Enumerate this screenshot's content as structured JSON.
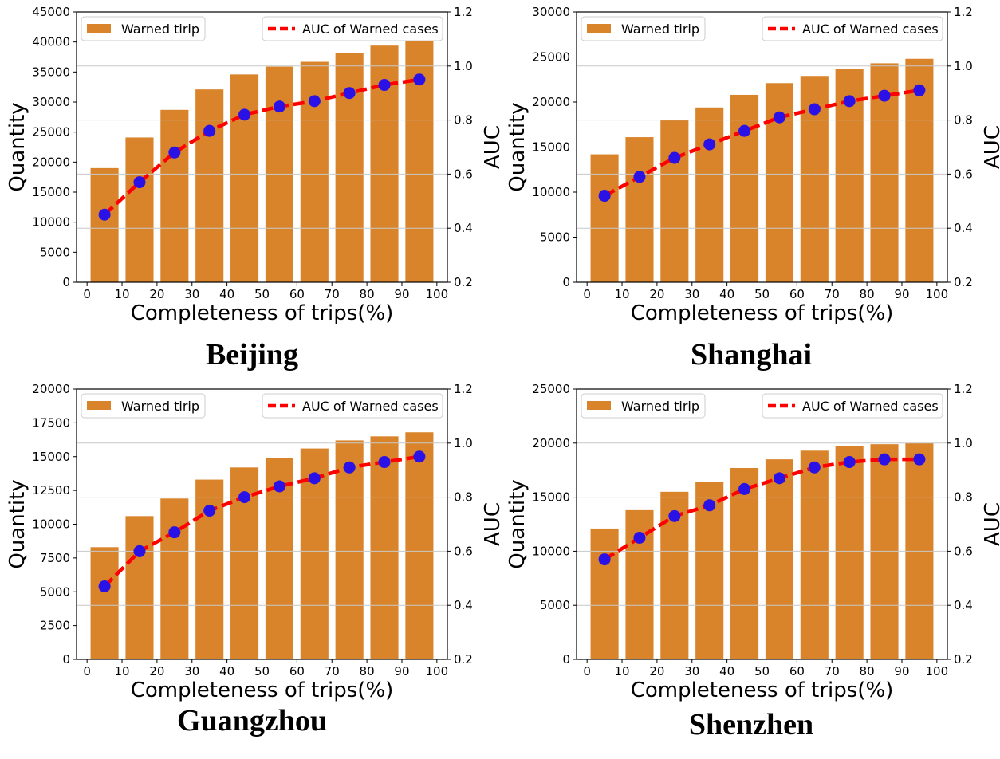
{
  "chart_data": [
    {
      "type": "bar",
      "city": "Beijing",
      "x": [
        5,
        15,
        25,
        35,
        45,
        55,
        65,
        75,
        85,
        95
      ],
      "xticks": [
        "0",
        "10",
        "20",
        "30",
        "40",
        "50",
        "60",
        "70",
        "80",
        "90",
        "100"
      ],
      "xlabel": "Completeness of trips(%)",
      "ylabel": "Quantity",
      "y2label": "AUC",
      "ylim": [
        0,
        45000
      ],
      "yticks": [
        "0",
        "5000",
        "10000",
        "15000",
        "20000",
        "25000",
        "30000",
        "35000",
        "40000",
        "45000"
      ],
      "y2lim": [
        0.2,
        1.2
      ],
      "y2ticks": [
        "0.2",
        "0.4",
        "0.6",
        "0.8",
        "1.0",
        "1.2"
      ],
      "series": [
        {
          "name": "Warned tirip",
          "type": "bar",
          "axis": "left",
          "values": [
            19000,
            24100,
            28700,
            32100,
            34600,
            35900,
            36700,
            38100,
            39400,
            40300
          ]
        },
        {
          "name": "AUC of Warned cases",
          "type": "line",
          "axis": "right",
          "values": [
            0.45,
            0.57,
            0.68,
            0.76,
            0.82,
            0.85,
            0.87,
            0.9,
            0.93,
            0.95
          ]
        }
      ],
      "grid": "right-axis horizontal",
      "legend": [
        "top-left",
        "top-right"
      ]
    },
    {
      "type": "bar",
      "city": "Shanghai",
      "x": [
        5,
        15,
        25,
        35,
        45,
        55,
        65,
        75,
        85,
        95
      ],
      "xticks": [
        "0",
        "10",
        "20",
        "30",
        "40",
        "50",
        "60",
        "70",
        "80",
        "90",
        "100"
      ],
      "xlabel": "Completeness of trips(%)",
      "ylabel": "Quantity",
      "y2label": "AUC",
      "ylim": [
        0,
        30000
      ],
      "yticks": [
        "0",
        "5000",
        "10000",
        "15000",
        "20000",
        "25000",
        "30000"
      ],
      "y2lim": [
        0.2,
        1.2
      ],
      "y2ticks": [
        "0.2",
        "0.4",
        "0.6",
        "0.8",
        "1.0",
        "1.2"
      ],
      "series": [
        {
          "name": "Warned tirip",
          "type": "bar",
          "axis": "left",
          "values": [
            14200,
            16100,
            18000,
            19400,
            20800,
            22100,
            22900,
            23700,
            24300,
            24800
          ]
        },
        {
          "name": "AUC of Warned cases",
          "type": "line",
          "axis": "right",
          "values": [
            0.52,
            0.59,
            0.66,
            0.71,
            0.76,
            0.81,
            0.84,
            0.87,
            0.89,
            0.91
          ]
        }
      ],
      "grid": "right-axis horizontal",
      "legend": [
        "top-left",
        "top-right"
      ]
    },
    {
      "type": "bar",
      "city": "Guangzhou",
      "x": [
        5,
        15,
        25,
        35,
        45,
        55,
        65,
        75,
        85,
        95
      ],
      "xticks": [
        "0",
        "10",
        "20",
        "30",
        "40",
        "50",
        "60",
        "70",
        "80",
        "90",
        "100"
      ],
      "xlabel": "Completeness of trips(%)",
      "ylabel": "Quantity",
      "y2label": "AUC",
      "ylim": [
        0,
        20000
      ],
      "yticks": [
        "0",
        "2500",
        "5000",
        "7500",
        "10000",
        "12500",
        "15000",
        "17500",
        "20000"
      ],
      "y2lim": [
        0.2,
        1.2
      ],
      "y2ticks": [
        "0.2",
        "0.4",
        "0.6",
        "0.8",
        "1.0",
        "1.2"
      ],
      "series": [
        {
          "name": "Warned tirip",
          "type": "bar",
          "axis": "left",
          "values": [
            8300,
            10600,
            11900,
            13300,
            14200,
            14900,
            15600,
            16200,
            16500,
            16800
          ]
        },
        {
          "name": "AUC of Warned cases",
          "type": "line",
          "axis": "right",
          "values": [
            0.47,
            0.6,
            0.67,
            0.75,
            0.8,
            0.84,
            0.87,
            0.91,
            0.93,
            0.95
          ]
        }
      ],
      "grid": "right-axis horizontal",
      "legend": [
        "top-left",
        "top-right"
      ]
    },
    {
      "type": "bar",
      "city": "Shenzhen",
      "x": [
        5,
        15,
        25,
        35,
        45,
        55,
        65,
        75,
        85,
        95
      ],
      "xticks": [
        "0",
        "10",
        "20",
        "30",
        "40",
        "50",
        "60",
        "70",
        "80",
        "90",
        "100"
      ],
      "xlabel": "Completeness of trips(%)",
      "ylabel": "Quantity",
      "y2label": "AUC",
      "ylim": [
        0,
        25000
      ],
      "yticks": [
        "0",
        "5000",
        "10000",
        "15000",
        "20000",
        "25000"
      ],
      "y2lim": [
        0.2,
        1.2
      ],
      "y2ticks": [
        "0.2",
        "0.4",
        "0.6",
        "0.8",
        "1.0",
        "1.2"
      ],
      "series": [
        {
          "name": "Warned tirip",
          "type": "bar",
          "axis": "left",
          "values": [
            12100,
            13800,
            15500,
            16400,
            17700,
            18500,
            19300,
            19700,
            19900,
            20000
          ]
        },
        {
          "name": "AUC of Warned cases",
          "type": "line",
          "axis": "right",
          "values": [
            0.57,
            0.65,
            0.73,
            0.77,
            0.83,
            0.87,
            0.91,
            0.93,
            0.94,
            0.94
          ]
        }
      ],
      "grid": "right-axis horizontal",
      "legend": [
        "top-left",
        "top-right"
      ]
    }
  ],
  "colors": {
    "bar": "#d9842b",
    "line": "#ff0000",
    "marker": "#2a12e6",
    "grid": "#c8c8c8"
  }
}
